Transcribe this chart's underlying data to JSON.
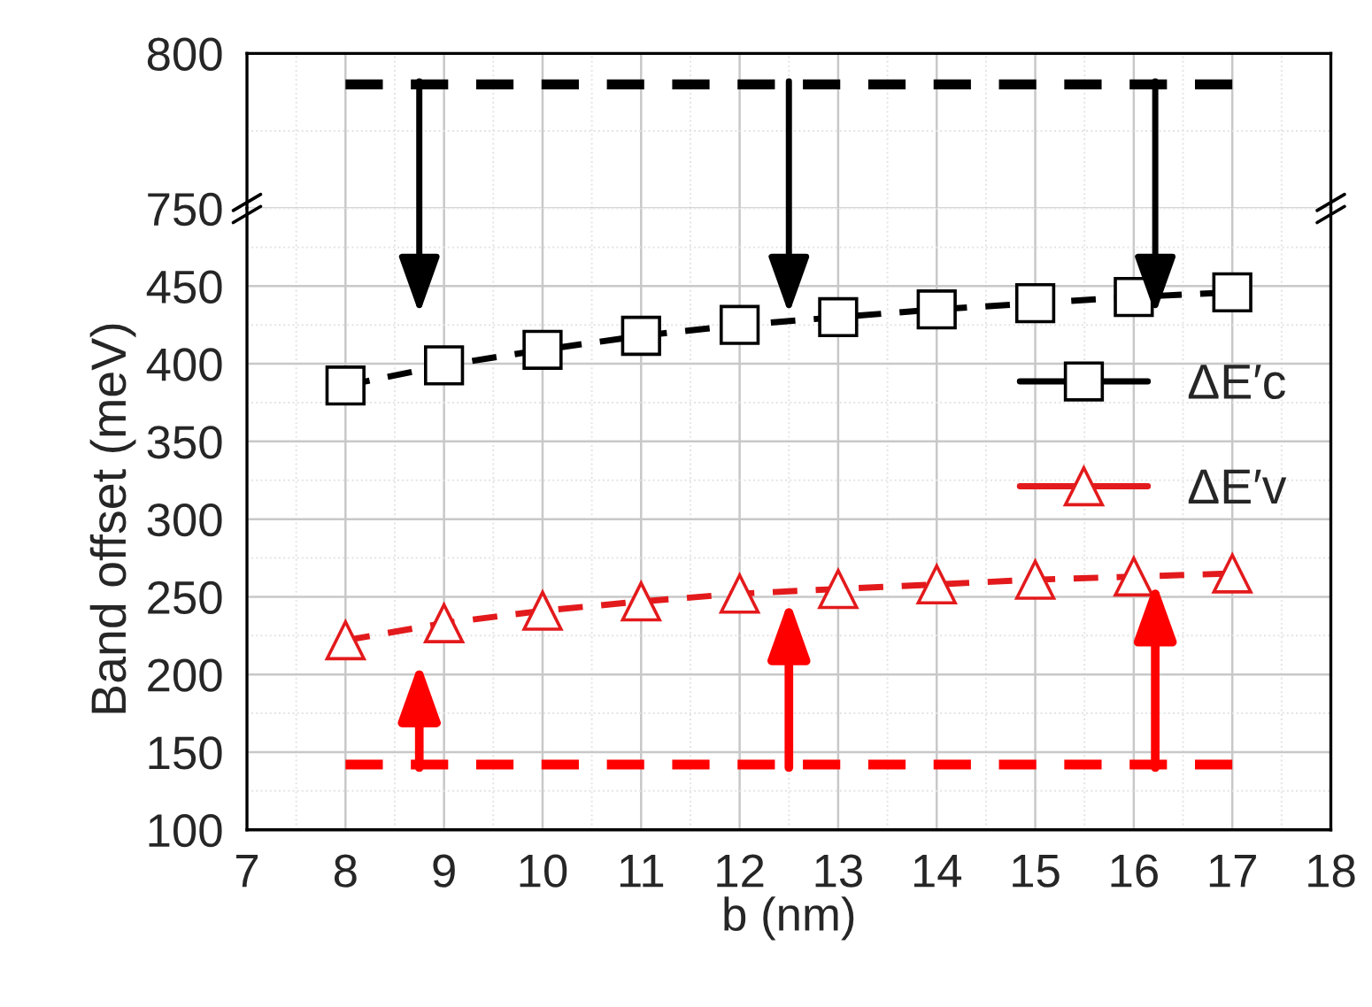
{
  "chart_data": [
    {
      "type": "line",
      "xlim": [
        7,
        18
      ],
      "xticks": [
        7,
        8,
        9,
        10,
        11,
        12,
        13,
        14,
        15,
        16,
        17,
        18
      ],
      "ylim": [
        750,
        800
      ],
      "yticks": [
        750,
        800
      ],
      "tick_labels": "y",
      "grid": true,
      "series": [
        {
          "type": "line",
          "color": "#000000",
          "x": [
            8,
            17
          ],
          "values": [
            790,
            790
          ],
          "line_style": "dashed",
          "marker": "none"
        }
      ]
    },
    {
      "type": "line",
      "xlabel": "b (nm)",
      "ylabel": "Band offset (meV)",
      "xlim": [
        7,
        18
      ],
      "xticks": [
        7,
        8,
        9,
        10,
        11,
        12,
        13,
        14,
        15,
        16,
        17,
        18
      ],
      "ylim": [
        100,
        500
      ],
      "yticks": [
        100,
        150,
        200,
        250,
        300,
        350,
        400,
        450
      ],
      "grid": true,
      "legend": "right",
      "series": [
        {
          "name": "ΔE′c",
          "color": "#000000",
          "x": [
            8,
            9,
            10,
            11,
            12,
            13,
            14,
            15,
            16,
            17
          ],
          "values": [
            386,
            399,
            409,
            418,
            425,
            430,
            435,
            439,
            443,
            446
          ],
          "marker": "square",
          "line_style": "dashed"
        },
        {
          "name": "ΔE′v",
          "color": "#e31a1c",
          "x": [
            8,
            9,
            10,
            11,
            12,
            13,
            14,
            15,
            16,
            17
          ],
          "values": [
            222,
            233,
            241,
            247,
            252,
            255,
            258,
            261,
            263,
            265
          ],
          "marker": "triangle",
          "line_style": "dashed"
        },
        {
          "color": "#ff0000",
          "x": [
            8,
            17
          ],
          "values": [
            142,
            142
          ],
          "line_style": "dashed",
          "marker": "none"
        }
      ]
    }
  ]
}
